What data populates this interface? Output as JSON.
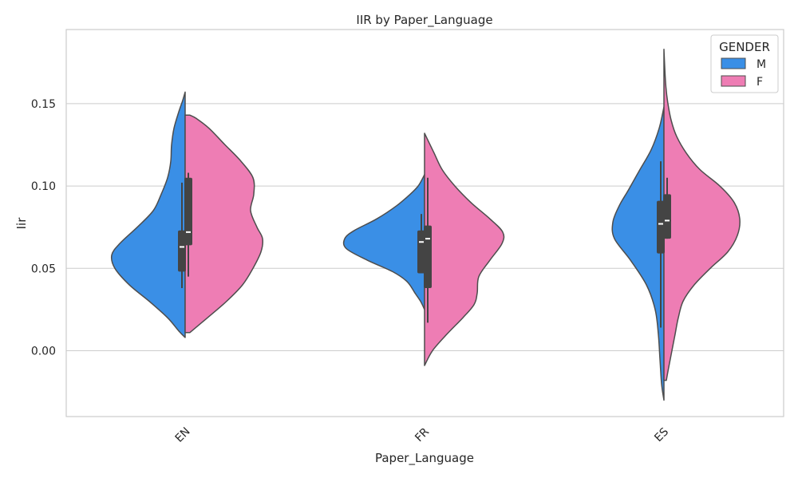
{
  "chart_data": {
    "type": "violin",
    "title": "IIR by Paper_Language",
    "xlabel": "Paper_Language",
    "ylabel": "Iir",
    "categories": [
      "EN",
      "FR",
      "ES"
    ],
    "ylim": [
      -0.04,
      0.195
    ],
    "yticks": [
      0.0,
      0.05,
      0.1,
      0.15
    ],
    "ytick_labels": [
      "0.00",
      "0.05",
      "0.10",
      "0.15"
    ],
    "grid": true,
    "legend": {
      "title": "GENDER",
      "placement": "top-right",
      "entries": [
        "M",
        "F"
      ]
    },
    "series": [
      {
        "name": "M",
        "color": "#3a8fe6",
        "side": "left",
        "violins": [
          {
            "category": "EN",
            "range": [
              0.008,
              0.157
            ],
            "profile": [
              [
                0.008,
                0.0
              ],
              [
                0.012,
                0.08
              ],
              [
                0.02,
                0.22
              ],
              [
                0.03,
                0.45
              ],
              [
                0.04,
                0.7
              ],
              [
                0.05,
                0.88
              ],
              [
                0.058,
                0.92
              ],
              [
                0.065,
                0.82
              ],
              [
                0.075,
                0.6
              ],
              [
                0.085,
                0.4
              ],
              [
                0.095,
                0.3
              ],
              [
                0.105,
                0.22
              ],
              [
                0.115,
                0.18
              ],
              [
                0.125,
                0.17
              ],
              [
                0.135,
                0.14
              ],
              [
                0.145,
                0.08
              ],
              [
                0.152,
                0.03
              ],
              [
                0.157,
                0.0
              ]
            ],
            "box": {
              "q1": 0.048,
              "median": 0.063,
              "q3": 0.073,
              "whisker_low": 0.038,
              "whisker_high": 0.102
            }
          },
          {
            "category": "FR",
            "range": [
              0.025,
              0.107
            ],
            "profile": [
              [
                0.025,
                0.0
              ],
              [
                0.03,
                0.05
              ],
              [
                0.035,
                0.12
              ],
              [
                0.042,
                0.22
              ],
              [
                0.048,
                0.4
              ],
              [
                0.055,
                0.72
              ],
              [
                0.062,
                0.98
              ],
              [
                0.068,
                1.0
              ],
              [
                0.073,
                0.88
              ],
              [
                0.08,
                0.6
              ],
              [
                0.088,
                0.35
              ],
              [
                0.095,
                0.18
              ],
              [
                0.1,
                0.08
              ],
              [
                0.105,
                0.02
              ],
              [
                0.107,
                0.0
              ]
            ],
            "box": {
              "q1": 0.047,
              "median": 0.066,
              "q3": 0.073,
              "whisker_low": 0.047,
              "whisker_high": 0.083
            }
          },
          {
            "category": "ES",
            "range": [
              -0.03,
              0.148
            ],
            "profile": [
              [
                -0.03,
                0.0
              ],
              [
                -0.02,
                0.03
              ],
              [
                -0.005,
                0.05
              ],
              [
                0.01,
                0.07
              ],
              [
                0.025,
                0.11
              ],
              [
                0.04,
                0.22
              ],
              [
                0.055,
                0.42
              ],
              [
                0.068,
                0.62
              ],
              [
                0.078,
                0.64
              ],
              [
                0.088,
                0.56
              ],
              [
                0.098,
                0.44
              ],
              [
                0.11,
                0.3
              ],
              [
                0.122,
                0.16
              ],
              [
                0.135,
                0.06
              ],
              [
                0.148,
                0.0
              ]
            ],
            "box": {
              "q1": 0.059,
              "median": 0.077,
              "q3": 0.091,
              "whisker_low": 0.014,
              "whisker_high": 0.115
            }
          }
        ]
      },
      {
        "name": "F",
        "color": "#ee7db4",
        "side": "right",
        "violins": [
          {
            "category": "EN",
            "range": [
              0.011,
              0.143
            ],
            "profile": [
              [
                0.011,
                0.06
              ],
              [
                0.02,
                0.28
              ],
              [
                0.03,
                0.52
              ],
              [
                0.04,
                0.72
              ],
              [
                0.05,
                0.85
              ],
              [
                0.06,
                0.95
              ],
              [
                0.068,
                0.97
              ],
              [
                0.075,
                0.9
              ],
              [
                0.085,
                0.82
              ],
              [
                0.095,
                0.86
              ],
              [
                0.105,
                0.85
              ],
              [
                0.115,
                0.7
              ],
              [
                0.125,
                0.5
              ],
              [
                0.135,
                0.3
              ],
              [
                0.141,
                0.14
              ],
              [
                0.143,
                0.06
              ]
            ],
            "box": {
              "q1": 0.064,
              "median": 0.072,
              "q3": 0.105,
              "whisker_low": 0.045,
              "whisker_high": 0.108
            }
          },
          {
            "category": "FR",
            "range": [
              -0.009,
              0.132
            ],
            "profile": [
              [
                -0.009,
                0.0
              ],
              [
                0.0,
                0.1
              ],
              [
                0.01,
                0.28
              ],
              [
                0.02,
                0.48
              ],
              [
                0.028,
                0.62
              ],
              [
                0.035,
                0.66
              ],
              [
                0.045,
                0.68
              ],
              [
                0.055,
                0.82
              ],
              [
                0.065,
                0.97
              ],
              [
                0.072,
                0.98
              ],
              [
                0.08,
                0.82
              ],
              [
                0.09,
                0.58
              ],
              [
                0.1,
                0.38
              ],
              [
                0.11,
                0.22
              ],
              [
                0.12,
                0.12
              ],
              [
                0.128,
                0.04
              ],
              [
                0.132,
                0.0
              ]
            ],
            "box": {
              "q1": 0.038,
              "median": 0.068,
              "q3": 0.076,
              "whisker_low": 0.017,
              "whisker_high": 0.105
            }
          },
          {
            "category": "ES",
            "range": [
              -0.018,
              0.183
            ],
            "profile": [
              [
                -0.018,
                0.03
              ],
              [
                -0.01,
                0.06
              ],
              [
                0.0,
                0.1
              ],
              [
                0.01,
                0.14
              ],
              [
                0.02,
                0.18
              ],
              [
                0.03,
                0.24
              ],
              [
                0.04,
                0.38
              ],
              [
                0.05,
                0.58
              ],
              [
                0.06,
                0.8
              ],
              [
                0.07,
                0.92
              ],
              [
                0.08,
                0.95
              ],
              [
                0.09,
                0.88
              ],
              [
                0.1,
                0.7
              ],
              [
                0.11,
                0.45
              ],
              [
                0.12,
                0.28
              ],
              [
                0.13,
                0.16
              ],
              [
                0.14,
                0.09
              ],
              [
                0.15,
                0.05
              ],
              [
                0.16,
                0.025
              ],
              [
                0.17,
                0.012
              ],
              [
                0.183,
                0.0
              ]
            ],
            "box": {
              "q1": 0.068,
              "median": 0.079,
              "q3": 0.095,
              "whisker_low": 0.068,
              "whisker_high": 0.105
            }
          }
        ]
      }
    ]
  }
}
